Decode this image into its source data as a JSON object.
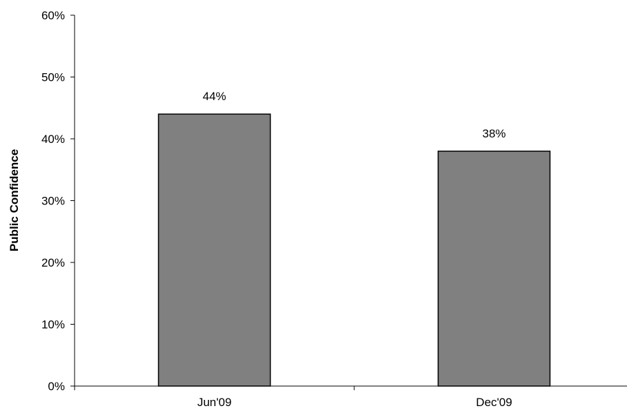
{
  "chart_data": {
    "type": "bar",
    "categories": [
      "Jun'09",
      "Dec'09"
    ],
    "values": [
      44,
      38
    ],
    "value_labels": [
      "44%",
      "38%"
    ],
    "ylabel": "Public Confidence",
    "xlabel": "",
    "ylim": [
      0,
      60
    ],
    "y_ticks": [
      0,
      10,
      20,
      30,
      40,
      50,
      60
    ],
    "y_tick_labels": [
      "0%",
      "10%",
      "20%",
      "30%",
      "40%",
      "50%",
      "60%"
    ],
    "grid": false,
    "legend": "none",
    "colors": {
      "bar_fill": "#808080",
      "bar_stroke": "#000000",
      "axis": "#000000"
    }
  }
}
